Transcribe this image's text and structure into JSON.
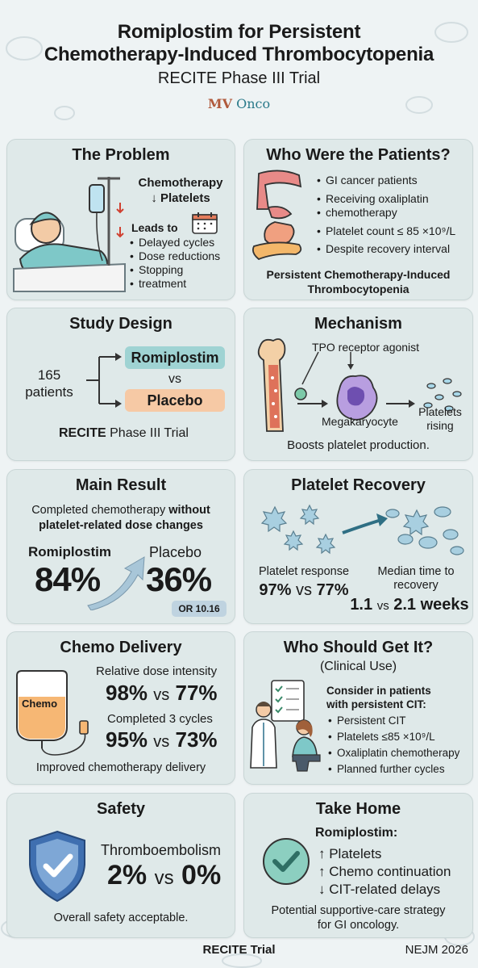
{
  "header": {
    "title_line1": "Romiplostim for Persistent",
    "title_line2": "Chemotherapy-Induced Thrombocytopenia",
    "subtitle": "RECITE Phase III Trial",
    "brand_mv": "MV",
    "brand_onco": "Onco"
  },
  "problem": {
    "title": "The Problem",
    "line1": "Chemotherapy",
    "line2": "↓ Platelets",
    "leads_to": "Leads to",
    "items": [
      "Delayed cycles",
      "Dose reductions",
      "Stopping",
      "treatment"
    ]
  },
  "patients": {
    "title": "Who Were the Patients?",
    "items": [
      "GI cancer patients",
      "Receiving oxaliplatin",
      "chemotherapy",
      "Platelet count ≤ 85 ×10⁹/L",
      "Despite recovery interval"
    ],
    "footer1": "Persistent Chemotherapy-Induced",
    "footer2": "Thrombocytopenia"
  },
  "design": {
    "title": "Study Design",
    "n": "165",
    "n_label": "patients",
    "arm1": "Romiplostim",
    "vs": "vs",
    "arm2": "Placebo",
    "trial_bold": "RECITE",
    "trial_rest": " Phase III Trial"
  },
  "mechanism": {
    "title": "Mechanism",
    "agonist": "TPO receptor agonist",
    "cell": "Megakaryocyte",
    "platelets1": "Platelets",
    "platelets2": "rising",
    "footer": "Boosts platelet production."
  },
  "main_result": {
    "title": "Main Result",
    "desc1_plain": "Completed chemotherapy ",
    "desc1_bold": "without",
    "desc2": "platelet-related dose changes",
    "arm1": "Romiplostim",
    "value1": "84%",
    "arm2": "Placebo",
    "value2": "36%",
    "or": "OR 10.16"
  },
  "recovery": {
    "title": "Platelet Recovery",
    "resp_label": "Platelet response",
    "resp1": "97%",
    "resp_vs": "vs",
    "resp2": "77%",
    "time_label1": "Median time to",
    "time_label2": "recovery",
    "time1": "1.1",
    "time_vs": "vs",
    "time2": "2.1 weeks"
  },
  "delivery": {
    "title": "Chemo Delivery",
    "bag_label": "Chemo",
    "rdi_label": "Relative dose intensity",
    "rdi1": "98%",
    "rdi_vs": "vs",
    "rdi2": "77%",
    "cycles_label": "Completed 3 cycles",
    "cyc1": "95%",
    "cyc_vs": "vs",
    "cyc2": "73%",
    "footer": "Improved chemotherapy delivery"
  },
  "who": {
    "title": "Who Should Get It?",
    "subtitle": "(Clinical Use)",
    "consider1": "Consider in patients",
    "consider2": "with persistent CIT:",
    "items": [
      "Persistent CIT",
      "Platelets ≤85 ×10⁹/L",
      "Oxaliplatin chemotherapy",
      "Planned further cycles"
    ]
  },
  "safety": {
    "title": "Safety",
    "event": "Thromboembolism",
    "v1": "2%",
    "vs": "vs",
    "v2": "0%",
    "footer": "Overall safety acceptable."
  },
  "takehome": {
    "title": "Take Home",
    "drug": "Romiplostim:",
    "items": [
      "↑ Platelets",
      "↑ Chemo continuation",
      "↓ CIT-related delays"
    ],
    "footer1": "Potential supportive-care strategy",
    "footer2": "for GI oncology."
  },
  "footer": {
    "center": "RECITE Trial",
    "right": "NEJM 2026"
  },
  "colors": {
    "romiplostim_box": "#9fd3d3",
    "placebo_box": "#f6c9a5",
    "or_badge": "#bfd3e0",
    "card_bg": "#dfe9e9",
    "check_green": "#4a9a8a",
    "shield_blue": "#3f6fb0"
  }
}
